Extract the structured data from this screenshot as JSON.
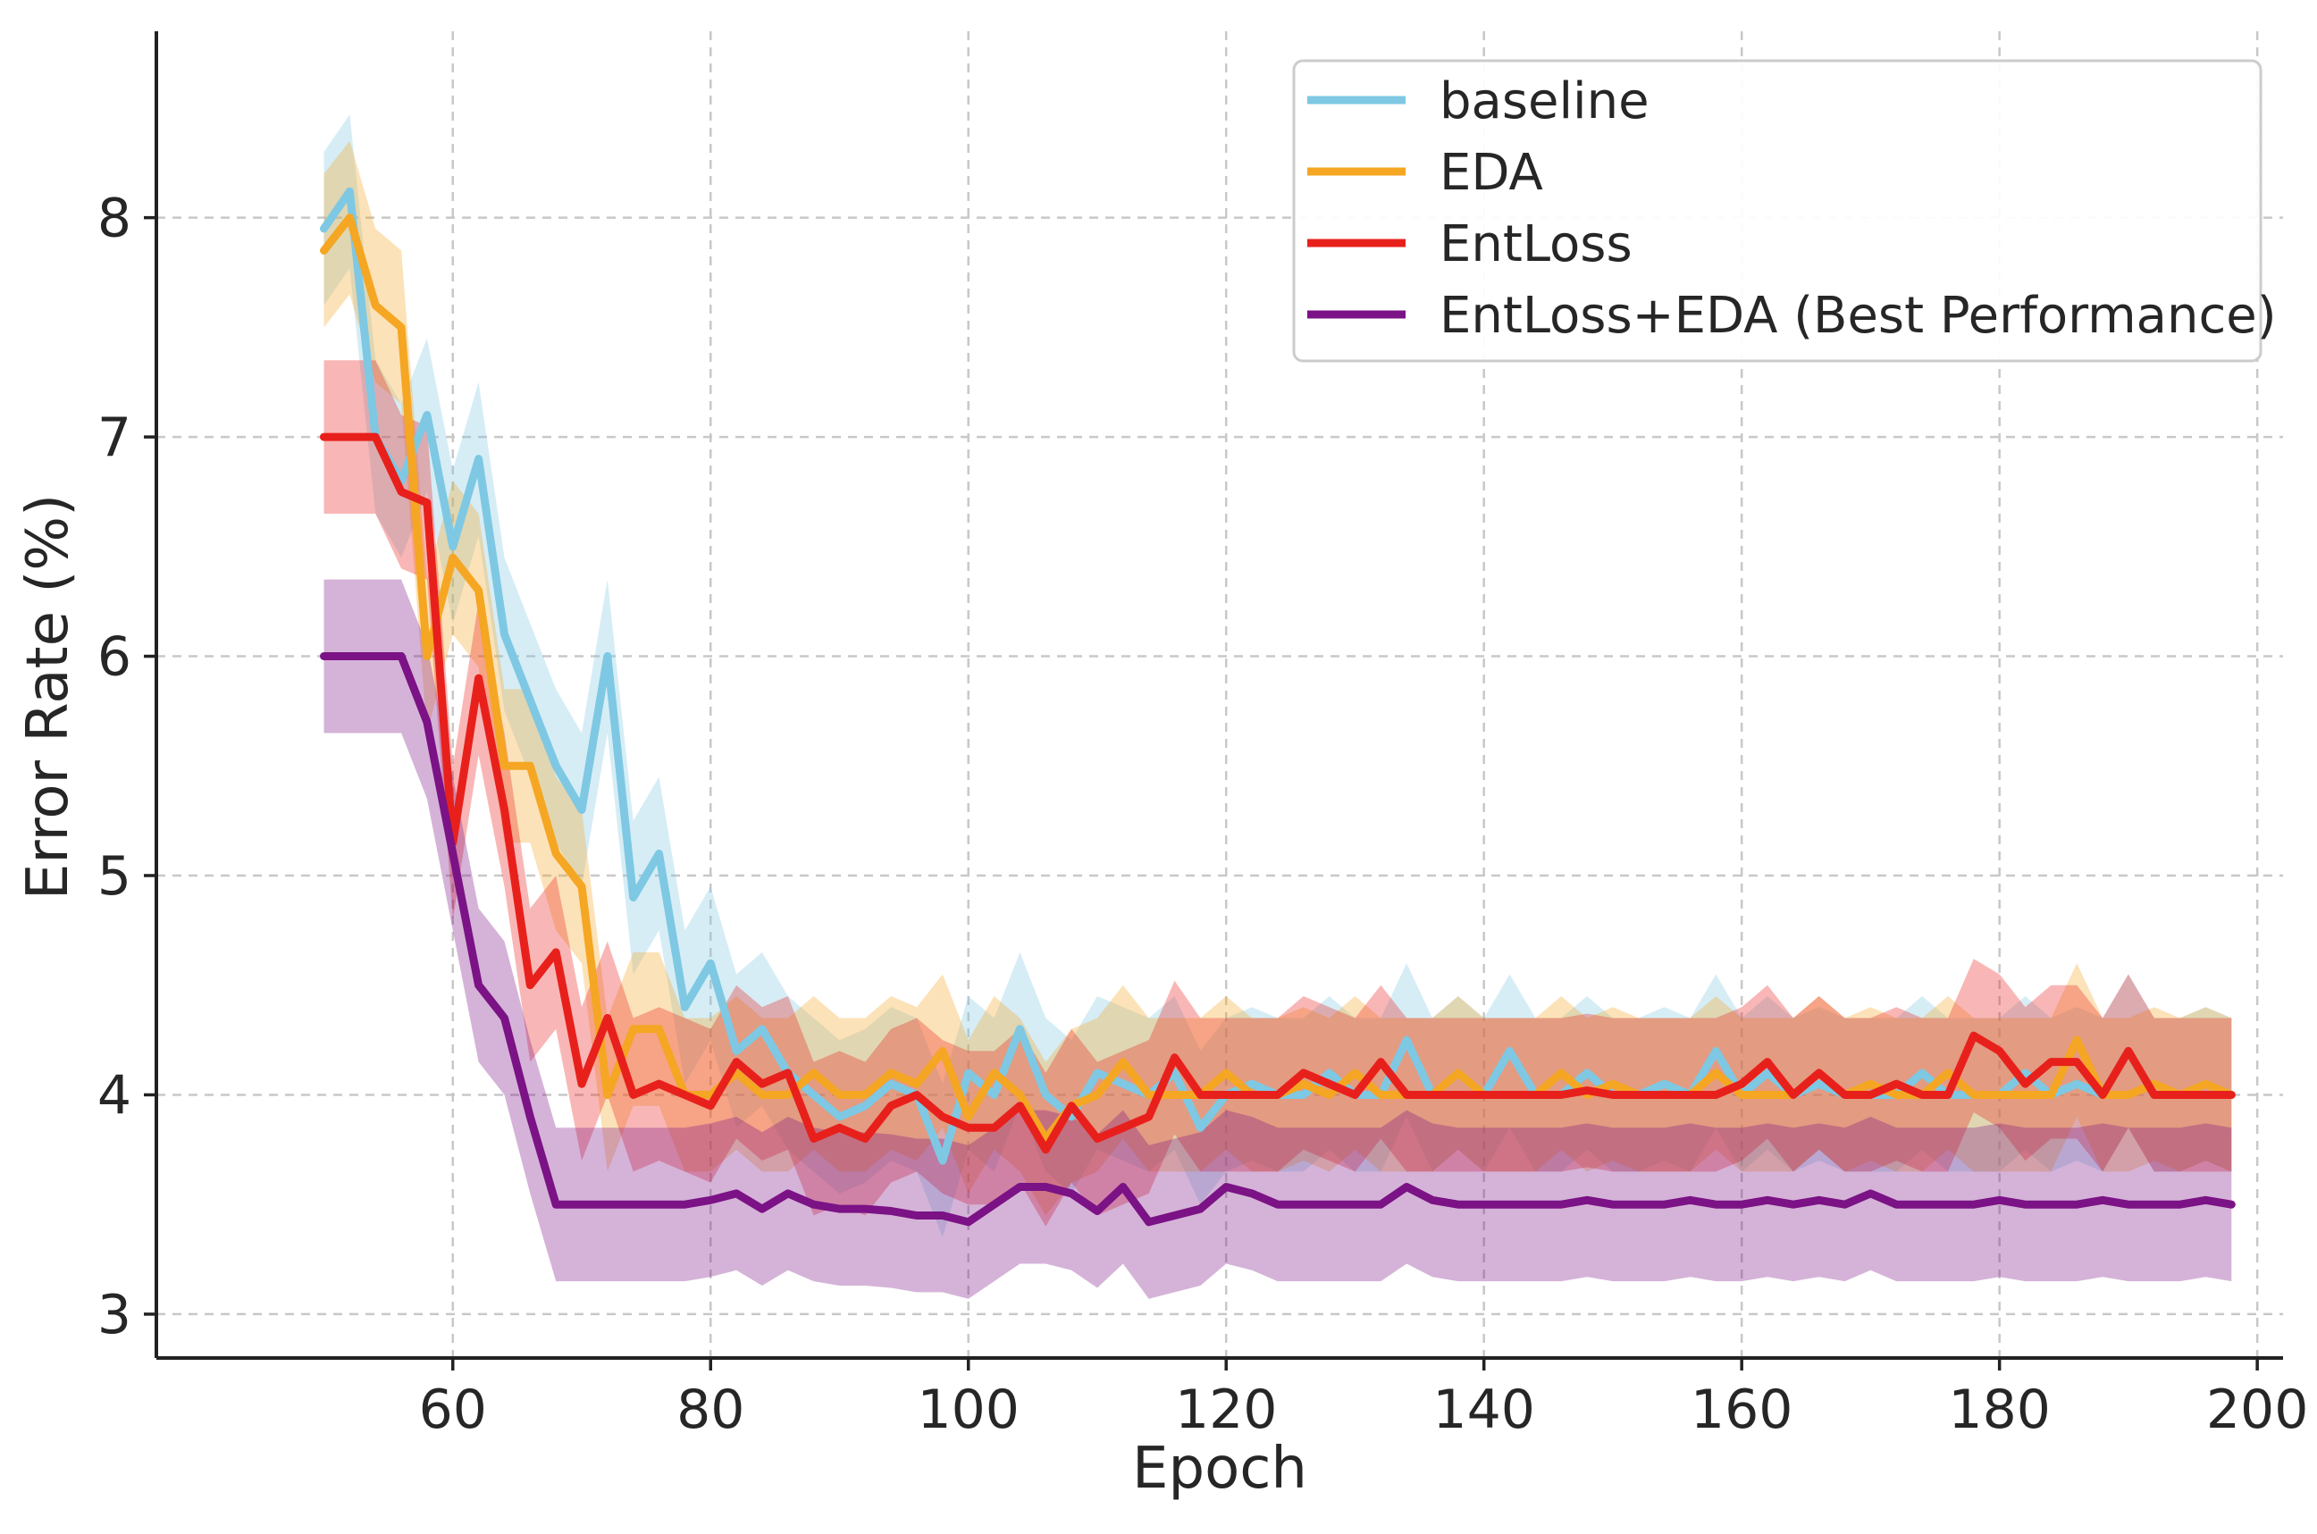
{
  "chart_data": {
    "type": "line",
    "xlabel": "Epoch",
    "ylabel": "Error Rate (%)",
    "xlim": [
      37,
      202
    ],
    "ylim": [
      2.8,
      8.85
    ],
    "xticks": [
      60,
      80,
      100,
      120,
      140,
      160,
      180,
      200
    ],
    "yticks": [
      3,
      4,
      5,
      6,
      7,
      8
    ],
    "grid": true,
    "legend_position": "top-right",
    "band_half_width": 0.35,
    "x": [
      50,
      52,
      54,
      56,
      58,
      60,
      62,
      64,
      66,
      68,
      70,
      72,
      74,
      76,
      78,
      80,
      82,
      84,
      86,
      88,
      90,
      92,
      94,
      96,
      98,
      100,
      102,
      104,
      106,
      108,
      110,
      112,
      114,
      116,
      118,
      120,
      122,
      124,
      126,
      128,
      130,
      132,
      134,
      136,
      138,
      140,
      142,
      144,
      146,
      148,
      150,
      152,
      154,
      156,
      158,
      160,
      162,
      164,
      166,
      168,
      170,
      172,
      174,
      176,
      178,
      180,
      182,
      184,
      186,
      188,
      190,
      192,
      194,
      196,
      198
    ],
    "series": [
      {
        "name": "baseline",
        "color": "#7ec8e3",
        "values": [
          7.95,
          8.12,
          7.0,
          6.8,
          7.1,
          6.5,
          6.9,
          6.1,
          5.8,
          5.5,
          5.3,
          6.0,
          4.9,
          5.1,
          4.4,
          4.6,
          4.2,
          4.3,
          4.1,
          4.0,
          3.9,
          3.95,
          4.05,
          4.0,
          3.7,
          4.1,
          4.0,
          4.3,
          4.0,
          3.9,
          4.1,
          4.05,
          4.0,
          4.1,
          3.85,
          4.0,
          4.05,
          4.0,
          4.0,
          4.1,
          4.0,
          4.0,
          4.25,
          4.0,
          4.1,
          4.0,
          4.2,
          4.0,
          4.0,
          4.1,
          4.0,
          4.0,
          4.05,
          4.0,
          4.2,
          4.0,
          4.1,
          4.0,
          4.05,
          4.0,
          4.0,
          4.0,
          4.1,
          4.0,
          4.0,
          4.0,
          4.1,
          4.0,
          4.05,
          4.0,
          4.2,
          4.0,
          4.0,
          4.05,
          4.0
        ]
      },
      {
        "name": "EDA",
        "color": "#f5a623",
        "values": [
          7.85,
          8.0,
          7.6,
          7.5,
          6.0,
          6.45,
          6.3,
          5.5,
          5.5,
          5.1,
          4.95,
          4.0,
          4.3,
          4.3,
          4.0,
          4.0,
          4.1,
          4.0,
          4.0,
          4.1,
          4.0,
          4.0,
          4.1,
          4.05,
          4.2,
          3.9,
          4.1,
          4.0,
          3.8,
          3.95,
          4.0,
          4.15,
          4.0,
          4.0,
          4.0,
          4.1,
          4.0,
          4.0,
          4.05,
          4.0,
          4.1,
          4.0,
          4.0,
          4.0,
          4.1,
          4.0,
          4.0,
          4.0,
          4.1,
          4.0,
          4.05,
          4.0,
          4.0,
          4.0,
          4.1,
          4.0,
          4.0,
          4.0,
          4.1,
          4.0,
          4.05,
          4.0,
          4.0,
          4.1,
          4.0,
          4.0,
          4.0,
          4.0,
          4.25,
          4.0,
          4.0,
          4.05,
          4.0,
          4.05,
          4.0
        ]
      },
      {
        "name": "EntLoss",
        "color": "#e8201c",
        "values": [
          7.0,
          7.0,
          7.0,
          6.75,
          6.7,
          5.15,
          5.9,
          5.3,
          4.5,
          4.65,
          4.05,
          4.35,
          4.0,
          4.05,
          4.0,
          3.95,
          4.15,
          4.05,
          4.1,
          3.8,
          3.85,
          3.8,
          3.95,
          4.0,
          3.9,
          3.85,
          3.85,
          3.95,
          3.75,
          3.95,
          3.8,
          3.85,
          3.9,
          4.17,
          4.0,
          4.0,
          4.0,
          4.0,
          4.1,
          4.05,
          4.0,
          4.15,
          4.0,
          4.0,
          4.0,
          4.0,
          4.0,
          4.0,
          4.0,
          4.02,
          4.0,
          4.0,
          4.0,
          4.0,
          4.0,
          4.05,
          4.15,
          4.0,
          4.1,
          4.0,
          4.0,
          4.05,
          4.0,
          4.0,
          4.27,
          4.2,
          4.05,
          4.15,
          4.15,
          4.0,
          4.2,
          4.0,
          4.0,
          4.0,
          4.0
        ]
      },
      {
        "name": "EntLoss+EDA (Best Performance)",
        "color": "#7b1285",
        "values": [
          6.0,
          6.0,
          6.0,
          6.0,
          5.7,
          5.1,
          4.5,
          4.35,
          3.9,
          3.5,
          3.5,
          3.5,
          3.5,
          3.5,
          3.5,
          3.52,
          3.55,
          3.48,
          3.55,
          3.5,
          3.48,
          3.48,
          3.47,
          3.45,
          3.45,
          3.42,
          3.5,
          3.58,
          3.58,
          3.55,
          3.47,
          3.58,
          3.42,
          3.45,
          3.48,
          3.58,
          3.55,
          3.5,
          3.5,
          3.5,
          3.5,
          3.5,
          3.58,
          3.52,
          3.5,
          3.5,
          3.5,
          3.5,
          3.5,
          3.52,
          3.5,
          3.5,
          3.5,
          3.52,
          3.5,
          3.5,
          3.52,
          3.5,
          3.52,
          3.5,
          3.55,
          3.5,
          3.5,
          3.5,
          3.5,
          3.52,
          3.5,
          3.5,
          3.5,
          3.52,
          3.5,
          3.5,
          3.5,
          3.52,
          3.5
        ]
      }
    ]
  }
}
